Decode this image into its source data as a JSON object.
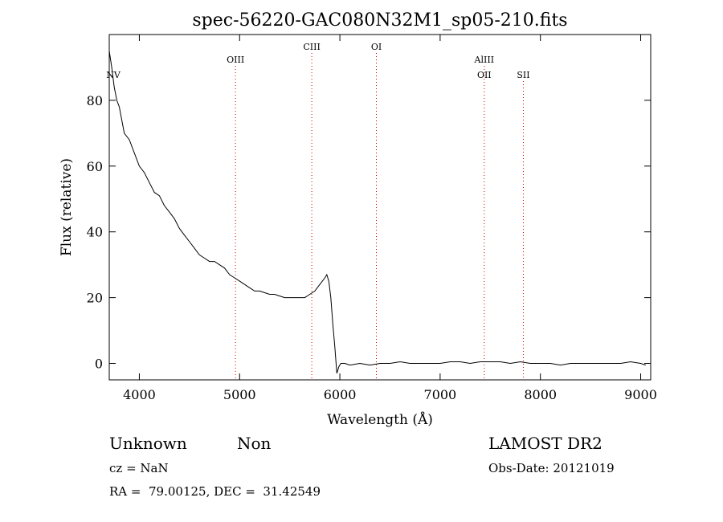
{
  "chart_data": {
    "type": "line",
    "title": "spec-56220-GAC080N32M1_sp05-210.fits",
    "xlabel": "Wavelength (Å)",
    "ylabel": "Flux (relative)",
    "xlim": [
      3700,
      9100
    ],
    "ylim": [
      -5,
      100
    ],
    "xticks": [
      4000,
      5000,
      6000,
      7000,
      8000,
      9000
    ],
    "yticks": [
      0,
      20,
      40,
      60,
      80
    ],
    "grid": false,
    "series": [
      {
        "x": [
          3700,
          3725,
          3750,
          3775,
          3800,
          3850,
          3900,
          3950,
          4000,
          4050,
          4100,
          4150,
          4200,
          4250,
          4300,
          4350,
          4400,
          4450,
          4500,
          4550,
          4600,
          4650,
          4700,
          4750,
          4800,
          4850,
          4900,
          4950,
          5000,
          5050,
          5100,
          5150,
          5200,
          5250,
          5300,
          5350,
          5400,
          5450,
          5500,
          5550,
          5600,
          5650,
          5700,
          5750,
          5800,
          5850,
          5870,
          5890,
          5910,
          5930,
          5950,
          5970,
          5990,
          6010,
          6050,
          6100,
          6200,
          6300,
          6400,
          6500,
          6600,
          6700,
          6800,
          6900,
          7000,
          7100,
          7200,
          7300,
          7400,
          7500,
          7600,
          7700,
          7800,
          7900,
          8000,
          8100,
          8200,
          8300,
          8400,
          8500,
          8600,
          8700,
          8800,
          8900,
          9000,
          9050
        ],
        "y": [
          95,
          90,
          84,
          80,
          78,
          70,
          68,
          64,
          60,
          58,
          55,
          52,
          51,
          48,
          46,
          44,
          41,
          39,
          37,
          35,
          33,
          32,
          31,
          31,
          30,
          29,
          27,
          26,
          25,
          24,
          23,
          22,
          22,
          21.5,
          21,
          21,
          20.5,
          20,
          20,
          20,
          20,
          20,
          21,
          22,
          24,
          26,
          27,
          25,
          20,
          12,
          5,
          -3,
          -1,
          0,
          0,
          -0.5,
          0,
          -0.5,
          0,
          0,
          0.5,
          0,
          0,
          0,
          0,
          0.5,
          0.5,
          0,
          0.5,
          0.5,
          0.5,
          0,
          0.5,
          0,
          0,
          0,
          -0.5,
          0,
          0,
          0,
          0,
          0,
          0,
          0.5,
          0,
          -0.5
        ]
      }
    ],
    "lines": [
      {
        "label": "NV",
        "x": 3740,
        "row": 2,
        "show_line": false
      },
      {
        "label": "OIII",
        "x": 4959,
        "row": 1,
        "show_line": true
      },
      {
        "label": "CIII",
        "x": 5720,
        "row": 0,
        "show_line": true
      },
      {
        "label": "OI",
        "x": 6364,
        "row": 0,
        "show_line": true
      },
      {
        "label": "AlIII",
        "x": 7440,
        "row": 1,
        "show_line": true
      },
      {
        "label": "OII",
        "x": 7440,
        "row": 2,
        "show_line": false
      },
      {
        "label": "SII",
        "x": 7830,
        "row": 2,
        "show_line": true
      }
    ]
  },
  "footer": {
    "class_label": "Unknown",
    "subclass_label": "Non",
    "cz_text": "cz = NaN",
    "coords_text": "RA =  79.00125, DEC =  31.42549",
    "survey_text": "LAMOST DR2",
    "obsdate_text": "Obs-Date: 20121019"
  },
  "colors": {
    "line": "#000000",
    "marker": "#cc0000",
    "background": "#ffffff"
  }
}
